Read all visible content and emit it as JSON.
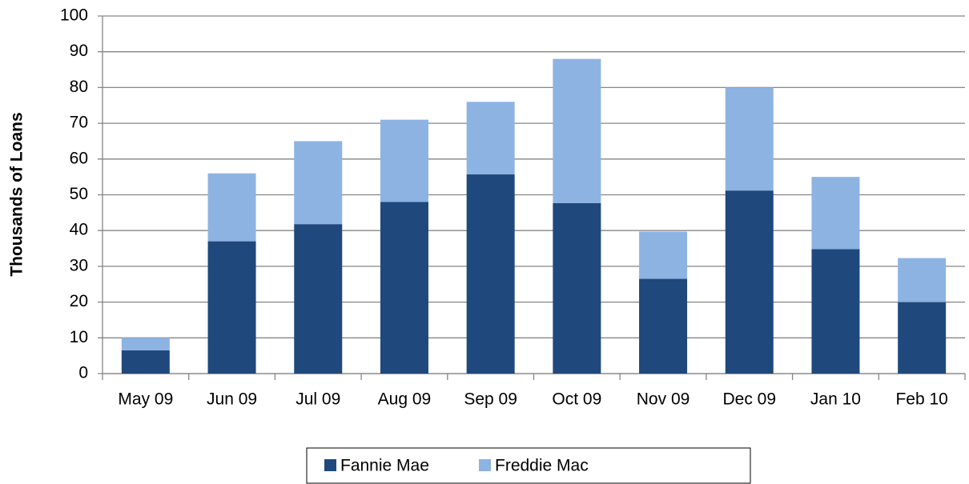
{
  "chart_data": {
    "type": "stacked_bar",
    "y_label": "Thousands of Loans",
    "categories": [
      "May 09",
      "Jun 09",
      "Jul 09",
      "Aug 09",
      "Sep 09",
      "Oct 09",
      "Nov 09",
      "Dec 09",
      "Jan 10",
      "Feb 10"
    ],
    "series": [
      {
        "name": "Fannie Mae",
        "color": "#1f497d",
        "values": [
          6.5,
          37,
          41.8,
          48,
          55.7,
          47.7,
          26.5,
          51.2,
          34.8,
          20
        ]
      },
      {
        "name": "Freddie Mac",
        "color": "#8db3e2",
        "values": [
          3.5,
          19,
          23.2,
          23,
          20.3,
          40.3,
          13.2,
          28.8,
          20.2,
          12.3
        ]
      }
    ],
    "ylim": [
      0,
      100
    ],
    "yticks": [
      0,
      10,
      20,
      30,
      40,
      50,
      60,
      70,
      80,
      90,
      100
    ],
    "grid": true,
    "legend": "bottom"
  }
}
